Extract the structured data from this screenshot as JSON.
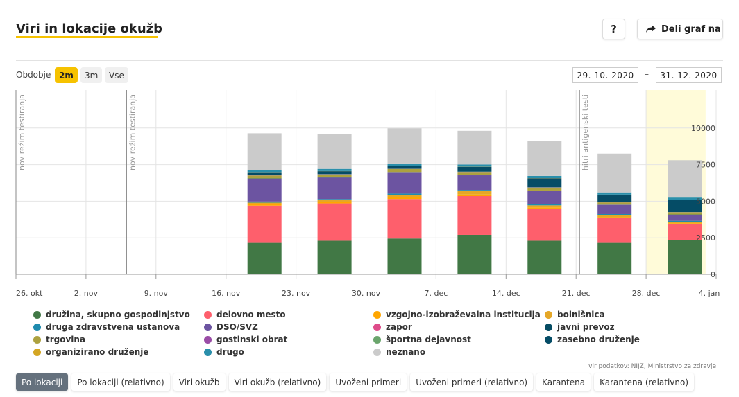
{
  "header": {
    "title": "Viri in lokacije okužb",
    "help_label": "?",
    "share_label": "Deli graf na"
  },
  "period": {
    "label": "Obdobje",
    "options": [
      "2m",
      "3m",
      "Vse"
    ],
    "selected": "2m",
    "from": "29. 10. 2020",
    "separator": "–",
    "to": "31. 12. 2020"
  },
  "chart_data": {
    "type": "bar",
    "stacked": true,
    "x_tick_labels": [
      "26. okt",
      "2. nov",
      "9. nov",
      "16. nov",
      "23. nov",
      "30. nov",
      "7. dec",
      "14. dec",
      "21. dec",
      "28. dec",
      "4. jan"
    ],
    "y_tick_labels": [
      "0",
      "2500",
      "5000",
      "7500",
      "10000"
    ],
    "ylim": [
      0,
      12500
    ],
    "annotations": [
      {
        "label": "nov režim testiranja",
        "x": "26. okt"
      },
      {
        "label": "nov režim testiranja",
        "x": "7. nov"
      },
      {
        "label": "hitri antigenski testi",
        "x": "21. dec"
      }
    ],
    "highlight_period": [
      "28. dec",
      "3. jan"
    ],
    "categories": [
      "16. nov – 22. nov",
      "23. nov – 29. nov",
      "30. nov – 6. dec",
      "7. dec – 13. dec",
      "14. dec – 20. dec",
      "21. dec – 27. dec",
      "28. dec – 3. jan"
    ],
    "series": [
      {
        "name": "družina, skupno gospodinjstvo",
        "color": "#417845",
        "values": [
          2150,
          2300,
          2450,
          2700,
          2300,
          2150,
          2350
        ]
      },
      {
        "name": "delovno mesto",
        "color": "#fe5f6c",
        "values": [
          2550,
          2550,
          2700,
          2650,
          2200,
          1700,
          1100
        ]
      },
      {
        "name": "vzgojno-izobraževalna institucija",
        "color": "#ffa600",
        "values": [
          100,
          110,
          110,
          110,
          80,
          60,
          40
        ]
      },
      {
        "name": "bolnišnica",
        "color": "#e5a727",
        "values": [
          100,
          110,
          180,
          230,
          140,
          130,
          90
        ]
      },
      {
        "name": "druga zdravstvena ustanova",
        "color": "#1f8bae",
        "values": [
          80,
          80,
          80,
          80,
          80,
          80,
          80
        ]
      },
      {
        "name": "DSO/SVZ",
        "color": "#6c54a1",
        "values": [
          1550,
          1450,
          1450,
          1000,
          900,
          620,
          400
        ]
      },
      {
        "name": "zapor",
        "color": "#de4c8a",
        "values": [
          10,
          10,
          10,
          10,
          10,
          10,
          10
        ]
      },
      {
        "name": "javni prevoz",
        "color": "#064c63",
        "values": [
          20,
          20,
          20,
          20,
          20,
          20,
          20
        ]
      },
      {
        "name": "trgovina",
        "color": "#aca13f",
        "values": [
          200,
          200,
          200,
          200,
          200,
          150,
          150
        ]
      },
      {
        "name": "gostinski obrat",
        "color": "#9a4ca6",
        "values": [
          10,
          10,
          10,
          10,
          10,
          10,
          10
        ]
      },
      {
        "name": "športna dejavnost",
        "color": "#6aa56c",
        "values": [
          10,
          10,
          10,
          10,
          10,
          10,
          10
        ]
      },
      {
        "name": "zasebno druženje",
        "color": "#054c66",
        "values": [
          200,
          200,
          200,
          330,
          620,
          500,
          830
        ]
      },
      {
        "name": "organizirano druženje",
        "color": "#d4a623",
        "values": [
          10,
          10,
          10,
          10,
          10,
          10,
          10
        ]
      },
      {
        "name": "drugo",
        "color": "#2a8fab",
        "values": [
          150,
          150,
          150,
          150,
          150,
          150,
          150
        ]
      },
      {
        "name": "neznano",
        "color": "#cbcbcb",
        "values": [
          2500,
          2400,
          2400,
          2300,
          2400,
          2650,
          2550
        ]
      }
    ]
  },
  "legend": [
    {
      "label": "družina, skupno gospodinjstvo",
      "color": "#417845"
    },
    {
      "label": "delovno mesto",
      "color": "#fe5f6c"
    },
    {
      "label": "vzgojno-izobraževalna institucija",
      "color": "#ffa600"
    },
    {
      "label": "bolnišnica",
      "color": "#e5a727"
    },
    {
      "label": "druga zdravstvena ustanova",
      "color": "#1f8bae"
    },
    {
      "label": "DSO/SVZ",
      "color": "#6c54a1"
    },
    {
      "label": "zapor",
      "color": "#de4c8a"
    },
    {
      "label": "javni prevoz",
      "color": "#064c63"
    },
    {
      "label": "trgovina",
      "color": "#aca13f"
    },
    {
      "label": "gostinski obrat",
      "color": "#9a4ca6"
    },
    {
      "label": "športna dejavnost",
      "color": "#6aa56c"
    },
    {
      "label": "zasebno druženje",
      "color": "#054c66"
    },
    {
      "label": "organizirano druženje",
      "color": "#d4a623"
    },
    {
      "label": "drugo",
      "color": "#2a8fab"
    },
    {
      "label": "neznano",
      "color": "#cbcbcb"
    }
  ],
  "source": "vir podatkov: NIJZ, Ministrstvo za zdravje",
  "tabs": [
    "Po lokaciji",
    "Po lokaciji (relativno)",
    "Viri okužb",
    "Viri okužb (relativno)",
    "Uvoženi primeri",
    "Uvoženi primeri (relativno)",
    "Karantena",
    "Karantena (relativno)"
  ],
  "active_tab": "Po lokaciji"
}
